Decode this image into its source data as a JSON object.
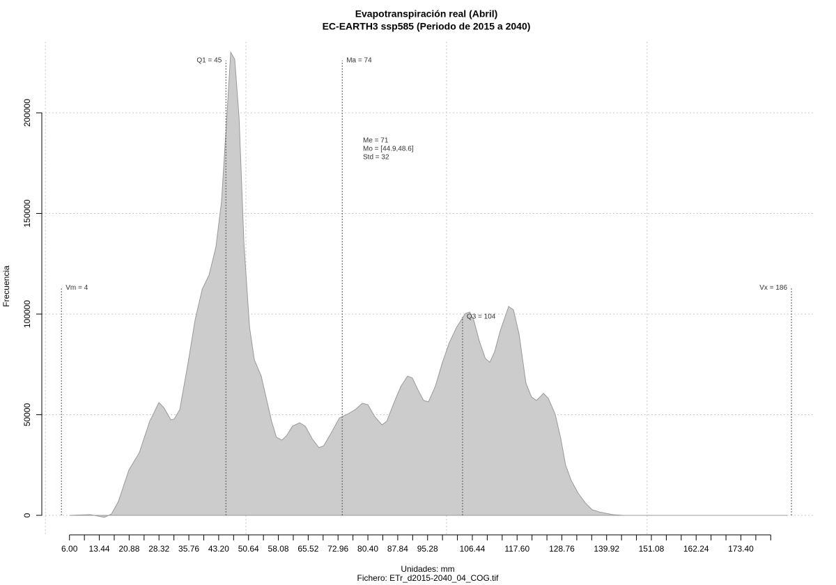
{
  "chart_data": {
    "type": "area",
    "title": "Evapotranspiración real (Abril)",
    "subtitle": "EC-EARTH3 ssp585 (Periodo de 2015 a 2040)",
    "x_label": "Unidades: mm",
    "caption": "Fichero: ETr_d2015-2040_04_COG.tif",
    "y_label": "Frecuencia",
    "color": "#cccccc",
    "line_color": "#999999",
    "grid": true,
    "xlim": [
      -0.9,
      191.9
    ],
    "ylim": [
      -9700,
      235300
    ],
    "xgrid": [
      0,
      50,
      100,
      150
    ],
    "yticks": [
      0,
      50000,
      100000,
      150000,
      200000
    ],
    "xticks": [
      {
        "value": 6,
        "label": "6.00"
      },
      13.44,
      20.88,
      28.32,
      35.76,
      {
        "value": 43.2,
        "label": "43.20"
      },
      50.64,
      58.08,
      65.52,
      72.96,
      {
        "value": 80.4,
        "label": "80.40"
      },
      87.84,
      95.28,
      106.44,
      {
        "value": 117.6,
        "label": "117.60"
      },
      128.76,
      139.92,
      151.08,
      162.24,
      {
        "value": 173.4,
        "label": "173.40"
      }
    ],
    "xminor_ticks": [
      6,
      9.72,
      13.44,
      17.16,
      20.88,
      24.6,
      28.32,
      32.04,
      35.76,
      39.48,
      43.2,
      46.92,
      50.64,
      54.36,
      58.08,
      61.8,
      65.52,
      69.24,
      72.96,
      76.68,
      80.4,
      84.12,
      87.84,
      91.56,
      95.28,
      99,
      102.72,
      106.44,
      110.16,
      113.88,
      117.6,
      121.32,
      125.04,
      128.76,
      132.48,
      136.2,
      139.92,
      143.64,
      147.36,
      151.08,
      154.8,
      158.52,
      162.24,
      165.96,
      169.68,
      173.4,
      177.12,
      180.84
    ],
    "x": [
      6.0,
      11.26,
      14.73,
      16.47,
      18.2,
      20.8,
      23.4,
      26.0,
      28.3,
      29.5,
      31.3,
      32.1,
      33.5,
      35.6,
      37.3,
      39.1,
      40.8,
      42.5,
      43.9,
      45.1,
      46.2,
      47.2,
      48.3,
      49.5,
      50.9,
      52.1,
      53.8,
      55.0,
      56.4,
      57.6,
      59.0,
      60.2,
      61.6,
      63.4,
      64.8,
      66.5,
      68.2,
      69.4,
      71.2,
      73.3,
      75.5,
      77.3,
      79.0,
      80.4,
      82.1,
      83.9,
      85.1,
      86.8,
      88.6,
      90.3,
      91.5,
      92.9,
      94.3,
      95.5,
      97.2,
      99.0,
      100.7,
      102.5,
      104.7,
      105.8,
      106.8,
      108.2,
      109.7,
      110.8,
      112.0,
      113.4,
      115.5,
      116.7,
      118.1,
      119.8,
      121.2,
      122.4,
      123.3,
      124.2,
      125.4,
      127.1,
      128.5,
      129.7,
      131.1,
      132.8,
      134.6,
      136.3,
      138.1,
      139.8,
      141.5,
      144.1,
      185.0
    ],
    "values": [
      0,
      350,
      -1000,
      700,
      6900,
      22500,
      31100,
      46700,
      56000,
      53600,
      47400,
      47800,
      52600,
      76100,
      96900,
      112400,
      119400,
      133200,
      155700,
      193800,
      230100,
      226600,
      197200,
      134900,
      93400,
      77200,
      69200,
      58800,
      46700,
      38800,
      37400,
      39800,
      44300,
      46000,
      44300,
      38100,
      33600,
      34600,
      40800,
      48400,
      50500,
      52600,
      55700,
      55000,
      49100,
      45000,
      46700,
      55400,
      64000,
      69200,
      68200,
      62300,
      57100,
      56400,
      64000,
      76100,
      85800,
      93400,
      100300,
      101000,
      96900,
      86500,
      77900,
      76100,
      81300,
      91700,
      103800,
      102100,
      90000,
      65700,
      58800,
      57100,
      58800,
      60600,
      58100,
      50200,
      38100,
      24900,
      17300,
      11100,
      6200,
      2800,
      1700,
      1000,
      350,
      0,
      0
    ],
    "annotations": [
      {
        "label": "Vm = 4",
        "x": 4,
        "y": 113000
      },
      {
        "label": "Q1 = 45",
        "x": 45,
        "y": 226000
      },
      {
        "label": "Ma = 74",
        "x": 74,
        "y": 226000
      },
      {
        "label": "Q3 = 104",
        "x": 104,
        "y": 98600
      },
      {
        "label": "Vx = 186",
        "x": 186,
        "y": 113000
      }
    ],
    "stats": [
      "Me = 71",
      "Mo = [44.9,48.6]",
      "Std = 32"
    ]
  }
}
